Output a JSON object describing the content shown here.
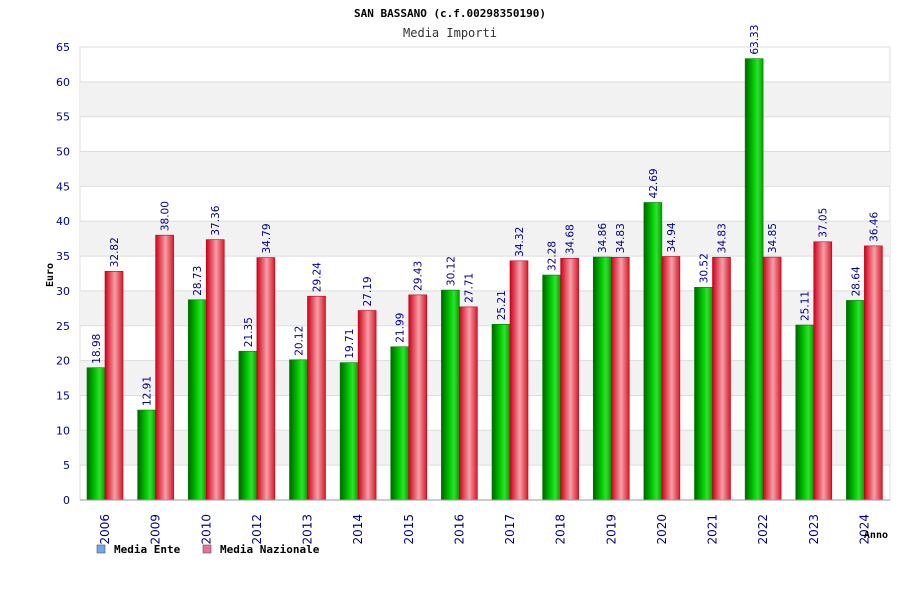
{
  "chart_data": {
    "type": "bar",
    "title": "SAN BASSANO (c.f.00298350190)",
    "subtitle": "Media Importi",
    "xlabel": "Anno",
    "ylabel": "Euro",
    "ylim": [
      0,
      65
    ],
    "yticks": [
      0,
      5,
      10,
      15,
      20,
      25,
      30,
      35,
      40,
      45,
      50,
      55,
      60,
      65
    ],
    "grid": true,
    "legend": "bottom-left",
    "categories": [
      "2006",
      "2009",
      "2010",
      "2012",
      "2013",
      "2014",
      "2015",
      "2016",
      "2017",
      "2018",
      "2019",
      "2020",
      "2021",
      "2022",
      "2023",
      "2024"
    ],
    "series": [
      {
        "name": "Media Ente",
        "color": "#00b000",
        "legend_color": "#6fa8e8",
        "values": [
          18.98,
          12.91,
          28.73,
          21.35,
          20.12,
          19.71,
          21.99,
          30.12,
          25.21,
          32.28,
          34.86,
          42.69,
          30.52,
          63.33,
          25.11,
          28.64
        ],
        "labels": [
          "18.98",
          "12.91",
          "28.73",
          "21.35",
          "20.12",
          "19.71",
          "21.99",
          "30.12",
          "25.21",
          "32.28",
          "34.86",
          "42.69",
          "30.52",
          "63.33",
          "25.11",
          "28.64"
        ]
      },
      {
        "name": "Media Nazionale",
        "color": "#e8202a",
        "legend_color": "#e8709a",
        "values": [
          32.82,
          38.0,
          37.36,
          34.79,
          29.24,
          27.19,
          29.43,
          27.71,
          34.32,
          34.68,
          34.83,
          34.94,
          34.83,
          34.85,
          37.05,
          36.46
        ],
        "labels": [
          "32.82",
          "38.00",
          "37.36",
          "34.79",
          "29.24",
          "27.19",
          "29.43",
          "27.71",
          "34.32",
          "34.68",
          "34.83",
          "34.94",
          "34.83",
          "34.85",
          "37.05",
          "36.46"
        ]
      }
    ]
  }
}
